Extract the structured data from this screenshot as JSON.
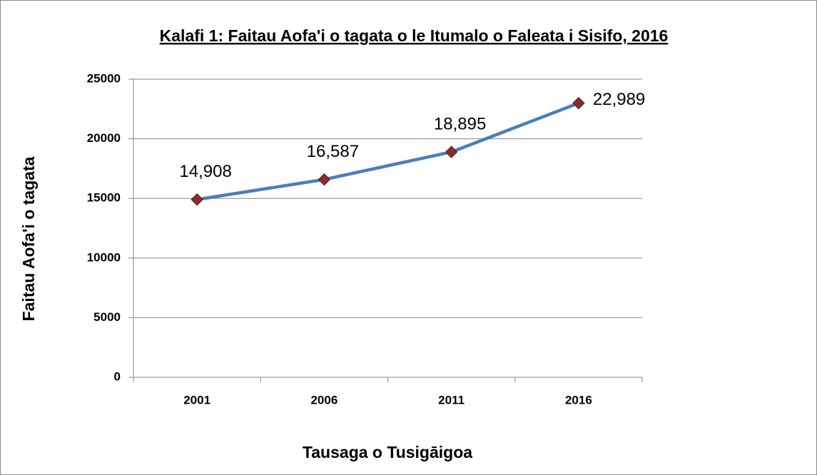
{
  "chart_data": {
    "type": "line",
    "title": "Kalafi 1: Faitau Aofa'i o tagata o le Itumalo o Faleata i Sisifo, 2016",
    "xlabel": "Tausaga o Tusigāigoa",
    "ylabel": "Faitau Aofa'i o tagata",
    "categories": [
      "2001",
      "2006",
      "2011",
      "2016"
    ],
    "series": [
      {
        "name": "Faitau Aofa'i o tagata",
        "color": "#4a7ebb",
        "marker_color": "#8b2c2c",
        "values": [
          14908,
          16587,
          18895,
          22989
        ],
        "value_labels": [
          "14,908",
          "16,587",
          "18,895",
          "22,989"
        ]
      }
    ],
    "ylim": [
      0,
      25000
    ],
    "yticks": [
      0,
      5000,
      10000,
      15000,
      20000,
      25000
    ],
    "grid": true
  }
}
